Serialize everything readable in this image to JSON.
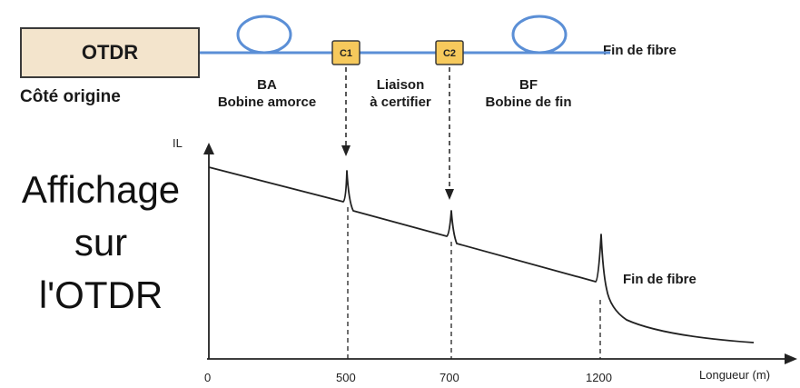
{
  "otdr_label": "OTDR",
  "origin_side": "Côté origine",
  "segments": {
    "ba_code": "BA",
    "ba_name": "Bobine amorce",
    "liaison_line1": "Liaison",
    "liaison_line2": "à certifier",
    "bf_code": "BF",
    "bf_name": "Bobine de fin"
  },
  "connectors": [
    "C1",
    "C2"
  ],
  "fiber_end_top": "Fin de fibre",
  "display_text": [
    "Affichage",
    "sur",
    "l'OTDR"
  ],
  "colors": {
    "fiber": "#5b8fd6",
    "otdr_fill": "#f3e4cc",
    "connector_fill": "#f6c95c"
  },
  "chart_data": {
    "type": "line",
    "ylabel": "IL",
    "xlabel": "Longueur (m)",
    "x_ticks": [
      "0",
      "500",
      "700",
      "1200"
    ],
    "event_positions_m": [
      500,
      700,
      1200
    ],
    "annotation": "Fin de fibre"
  }
}
